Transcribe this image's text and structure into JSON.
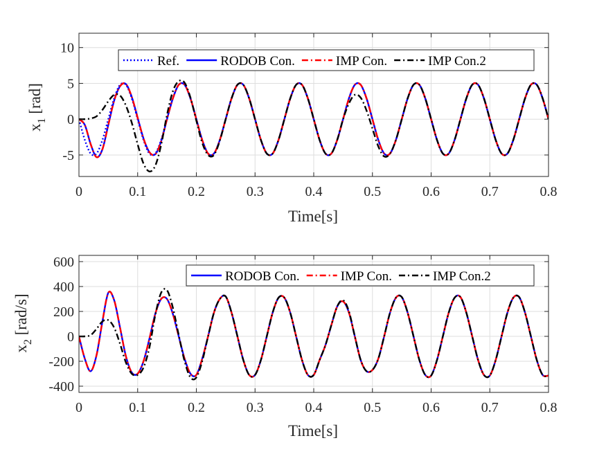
{
  "chart_data": [
    {
      "type": "line",
      "xlabel": "Time[s]",
      "ylabel_main": "x",
      "ylabel_sub": "1",
      "ylabel_unit": " [rad]",
      "xlim": [
        0,
        0.8
      ],
      "ylim": [
        -8,
        12
      ],
      "xticks": [
        0,
        0.1,
        0.2,
        0.3,
        0.4,
        0.5,
        0.6,
        0.7,
        0.8
      ],
      "xtick_labels": [
        "0",
        "0.1",
        "0.2",
        "0.3",
        "0.4",
        "0.5",
        "0.6",
        "0.7",
        "0.8"
      ],
      "yticks": [
        -5,
        0,
        5,
        10
      ],
      "ytick_labels": [
        "-5",
        "0",
        "5",
        "10"
      ],
      "grid": true,
      "legend_position": "top-right",
      "legend_layout": "horizontal",
      "x": [
        0,
        0.01,
        0.02,
        0.03,
        0.04,
        0.05,
        0.06,
        0.07,
        0.08,
        0.09,
        0.1,
        0.11,
        0.12,
        0.13,
        0.14,
        0.15,
        0.16,
        0.17,
        0.18,
        0.19,
        0.2,
        0.21,
        0.22,
        0.23,
        0.24,
        0.25,
        0.26,
        0.27,
        0.28,
        0.29,
        0.3,
        0.31,
        0.32,
        0.33,
        0.34,
        0.35,
        0.36,
        0.37,
        0.38,
        0.39,
        0.4,
        0.41,
        0.42,
        0.43,
        0.44,
        0.45,
        0.46,
        0.47,
        0.48,
        0.49,
        0.5,
        0.51,
        0.52,
        0.53,
        0.54,
        0.55,
        0.56,
        0.57,
        0.58,
        0.59,
        0.6,
        0.61,
        0.62,
        0.63,
        0.64,
        0.65,
        0.66,
        0.67,
        0.68,
        0.69,
        0.7,
        0.71,
        0.72,
        0.73,
        0.74,
        0.75,
        0.76,
        0.77,
        0.78,
        0.79,
        0.8
      ],
      "series": [
        {
          "name": "Ref.",
          "color": "#0000ff",
          "dash": "dotted",
          "values": [
            0,
            -2.9,
            -4.8,
            -4.8,
            -2.9,
            0,
            2.9,
            4.8,
            4.8,
            2.9,
            0,
            -2.9,
            -4.8,
            -4.8,
            -2.9,
            0,
            2.9,
            4.8,
            4.8,
            2.9,
            0,
            -2.9,
            -4.8,
            -4.8,
            -2.9,
            0,
            2.9,
            4.8,
            4.8,
            2.9,
            0,
            -2.9,
            -4.8,
            -4.8,
            -2.9,
            0,
            2.9,
            4.8,
            4.8,
            2.9,
            0,
            -2.9,
            -4.8,
            -4.8,
            -2.9,
            0,
            2.9,
            4.8,
            4.8,
            2.9,
            0,
            -2.9,
            -4.8,
            -4.8,
            -2.9,
            0,
            2.9,
            4.8,
            4.8,
            2.9,
            0,
            -2.9,
            -4.8,
            -4.8,
            -2.9,
            0,
            2.9,
            4.8,
            4.8,
            2.9,
            0,
            -2.9,
            -4.8,
            -4.8,
            -2.9,
            0,
            2.9,
            4.8,
            4.8,
            2.9,
            0
          ]
        },
        {
          "name": "RODOB Con.",
          "color": "#0000ff",
          "dash": "solid",
          "values": [
            0,
            -0.8,
            -3.5,
            -5.3,
            -4.2,
            -0.8,
            2.6,
            4.6,
            4.9,
            3.1,
            0.2,
            -2.7,
            -4.6,
            -4.9,
            -3.1,
            0,
            2.9,
            4.8,
            4.8,
            2.9,
            0,
            -2.9,
            -4.8,
            -4.8,
            -2.9,
            0,
            2.9,
            4.8,
            4.8,
            2.9,
            0,
            -2.9,
            -4.8,
            -4.8,
            -2.9,
            0,
            2.9,
            4.8,
            4.8,
            2.9,
            0,
            -2.9,
            -4.8,
            -4.8,
            -2.9,
            0,
            2.9,
            4.8,
            4.8,
            2.9,
            0,
            -2.9,
            -4.8,
            -4.8,
            -2.9,
            0,
            2.9,
            4.8,
            4.8,
            2.9,
            0,
            -2.9,
            -4.8,
            -4.8,
            -2.9,
            0,
            2.9,
            4.8,
            4.8,
            2.9,
            0,
            -2.9,
            -4.8,
            -4.8,
            -2.9,
            0,
            2.9,
            4.8,
            4.8,
            2.9,
            0
          ]
        },
        {
          "name": "IMP Con.",
          "color": "#ff0000",
          "dash": "dashdot",
          "values": [
            0,
            -0.8,
            -3.5,
            -5.3,
            -4.2,
            -0.8,
            2.6,
            4.6,
            4.9,
            3.1,
            0.2,
            -2.7,
            -4.6,
            -4.9,
            -3.1,
            0,
            2.9,
            4.8,
            4.8,
            2.9,
            0,
            -2.9,
            -4.8,
            -4.8,
            -2.9,
            0,
            2.9,
            4.8,
            4.8,
            2.9,
            0,
            -2.9,
            -4.8,
            -4.8,
            -2.9,
            0,
            2.9,
            4.8,
            4.8,
            2.9,
            0,
            -2.9,
            -4.8,
            -4.8,
            -2.9,
            0,
            2.9,
            4.8,
            4.8,
            2.9,
            0,
            -2.9,
            -4.8,
            -4.8,
            -2.9,
            0,
            2.9,
            4.8,
            4.8,
            2.9,
            0,
            -2.9,
            -4.8,
            -4.8,
            -2.9,
            0,
            2.9,
            4.8,
            4.8,
            2.9,
            0,
            -2.9,
            -4.8,
            -4.8,
            -2.9,
            0,
            2.9,
            4.8,
            4.8,
            2.9,
            0
          ]
        },
        {
          "name": "IMP Con.2",
          "color": "#000000",
          "dash": "dashdot",
          "values": [
            0,
            0,
            0.1,
            0.4,
            1.3,
            2.5,
            3.4,
            3.3,
            1.9,
            -0.5,
            -3.5,
            -6.2,
            -7.3,
            -6.5,
            -3.6,
            0.6,
            3.9,
            5.3,
            5.1,
            3.0,
            -0.2,
            -3.3,
            -5.0,
            -5.0,
            -3.0,
            0,
            2.9,
            4.8,
            4.8,
            2.9,
            0,
            -2.9,
            -4.8,
            -4.8,
            -2.9,
            0,
            2.9,
            4.8,
            4.8,
            2.9,
            0,
            -2.9,
            -4.8,
            -4.8,
            -2.9,
            0,
            2.2,
            3.4,
            3.0,
            1.2,
            -1.3,
            -3.8,
            -5.2,
            -4.8,
            -2.9,
            0,
            2.9,
            4.8,
            4.8,
            2.9,
            0,
            -2.9,
            -4.8,
            -4.8,
            -2.9,
            0,
            2.9,
            4.8,
            4.8,
            2.9,
            0,
            -2.9,
            -4.8,
            -4.8,
            -2.9,
            0,
            2.9,
            4.8,
            4.8,
            2.9,
            0
          ]
        }
      ]
    },
    {
      "type": "line",
      "xlabel": "Time[s]",
      "ylabel_main": "x",
      "ylabel_sub": "2",
      "ylabel_unit": " [rad/s]",
      "xlim": [
        0,
        0.8
      ],
      "ylim": [
        -450,
        650
      ],
      "xticks": [
        0,
        0.1,
        0.2,
        0.3,
        0.4,
        0.5,
        0.6,
        0.7,
        0.8
      ],
      "xtick_labels": [
        "0",
        "0.1",
        "0.2",
        "0.3",
        "0.4",
        "0.5",
        "0.6",
        "0.7",
        "0.8"
      ],
      "yticks": [
        -400,
        -200,
        0,
        200,
        400,
        600
      ],
      "ytick_labels": [
        "-400",
        "-200",
        "0",
        "200",
        "400",
        "600"
      ],
      "grid": true,
      "legend_position": "top-right",
      "legend_layout": "horizontal",
      "x": [
        0,
        0.01,
        0.02,
        0.03,
        0.04,
        0.05,
        0.06,
        0.07,
        0.08,
        0.09,
        0.1,
        0.11,
        0.12,
        0.13,
        0.14,
        0.15,
        0.16,
        0.17,
        0.18,
        0.19,
        0.2,
        0.21,
        0.22,
        0.23,
        0.24,
        0.25,
        0.26,
        0.27,
        0.28,
        0.29,
        0.3,
        0.31,
        0.32,
        0.33,
        0.34,
        0.35,
        0.36,
        0.37,
        0.38,
        0.39,
        0.4,
        0.41,
        0.42,
        0.43,
        0.44,
        0.45,
        0.46,
        0.47,
        0.48,
        0.49,
        0.5,
        0.51,
        0.52,
        0.53,
        0.54,
        0.55,
        0.56,
        0.57,
        0.58,
        0.59,
        0.6,
        0.61,
        0.62,
        0.63,
        0.64,
        0.65,
        0.66,
        0.67,
        0.68,
        0.69,
        0.7,
        0.71,
        0.72,
        0.73,
        0.74,
        0.75,
        0.76,
        0.77,
        0.78,
        0.79,
        0.8
      ],
      "series": [
        {
          "name": "RODOB Con.",
          "color": "#0000ff",
          "dash": "solid",
          "values": [
            0,
            -180,
            -280,
            -150,
            120,
            350,
            290,
            70,
            -160,
            -290,
            -300,
            -200,
            -20,
            180,
            300,
            300,
            180,
            0,
            -180,
            -300,
            -310,
            -180,
            0,
            190,
            300,
            320,
            190,
            0,
            -190,
            -310,
            -310,
            -190,
            0,
            190,
            310,
            310,
            190,
            0,
            -190,
            -310,
            -310,
            -190,
            -70,
            90,
            240,
            280,
            190,
            0,
            -190,
            -280,
            -270,
            -180,
            0,
            190,
            310,
            315,
            190,
            0,
            -190,
            -310,
            -315,
            -190,
            0,
            190,
            310,
            315,
            190,
            0,
            -190,
            -310,
            -315,
            -190,
            0,
            190,
            310,
            315,
            190,
            0,
            -190,
            -310,
            -315
          ]
        },
        {
          "name": "IMP Con.",
          "color": "#ff0000",
          "dash": "dashdot",
          "values": [
            0,
            -180,
            -280,
            -150,
            120,
            350,
            290,
            70,
            -160,
            -290,
            -300,
            -200,
            -20,
            180,
            300,
            300,
            180,
            0,
            -180,
            -300,
            -310,
            -180,
            0,
            190,
            300,
            320,
            190,
            0,
            -190,
            -310,
            -310,
            -190,
            0,
            190,
            310,
            310,
            190,
            0,
            -190,
            -310,
            -310,
            -190,
            -70,
            90,
            240,
            280,
            190,
            0,
            -190,
            -280,
            -270,
            -180,
            0,
            190,
            310,
            315,
            190,
            0,
            -190,
            -310,
            -315,
            -190,
            0,
            190,
            310,
            315,
            190,
            0,
            -190,
            -310,
            -315,
            -190,
            0,
            190,
            310,
            315,
            190,
            0,
            -190,
            -310,
            -315
          ]
        },
        {
          "name": "IMP Con.2",
          "color": "#000000",
          "dash": "dashdot",
          "values": [
            0,
            0,
            10,
            60,
            120,
            130,
            70,
            -60,
            -210,
            -300,
            -310,
            -250,
            -90,
            170,
            350,
            370,
            230,
            10,
            -200,
            -330,
            -330,
            -200,
            0,
            190,
            300,
            320,
            190,
            0,
            -190,
            -310,
            -310,
            -190,
            0,
            190,
            310,
            310,
            190,
            0,
            -190,
            -310,
            -310,
            -190,
            -70,
            90,
            240,
            290,
            200,
            0,
            -190,
            -280,
            -270,
            -180,
            0,
            190,
            310,
            315,
            190,
            0,
            -190,
            -310,
            -315,
            -190,
            0,
            190,
            310,
            315,
            190,
            0,
            -190,
            -310,
            -315,
            -190,
            0,
            190,
            310,
            315,
            190,
            0,
            -190,
            -310,
            -315
          ]
        }
      ]
    }
  ]
}
